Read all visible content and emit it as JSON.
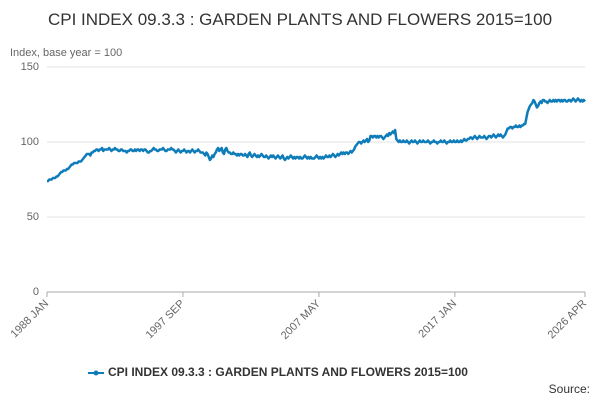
{
  "chart_data": {
    "type": "line",
    "title": "CPI INDEX 09.3.3 : GARDEN PLANTS AND FLOWERS 2015=100",
    "y_label": "Index, base year = 100",
    "source": "Source:",
    "categories": [
      "1988 JAN",
      null,
      null,
      null,
      null,
      null,
      null,
      null,
      null,
      null,
      null,
      null,
      null,
      null,
      null,
      null,
      null,
      null,
      null,
      null,
      null,
      null,
      null,
      null,
      null,
      null,
      null,
      null,
      null,
      null,
      null,
      null,
      null,
      null,
      null,
      null,
      null,
      null,
      null,
      null,
      null,
      null,
      null,
      null,
      null,
      null,
      null,
      null,
      null,
      null,
      null,
      null,
      null,
      null,
      null,
      null,
      null,
      null,
      null,
      null,
      null,
      null,
      null,
      null,
      null,
      null,
      null,
      null,
      null,
      null,
      null,
      null,
      null,
      null,
      null,
      null,
      null,
      null,
      null,
      null,
      null,
      null,
      null,
      null,
      null,
      null,
      null,
      null,
      null,
      null,
      null,
      null,
      null,
      null,
      null,
      null,
      null,
      null,
      null,
      null,
      null,
      null,
      null,
      null,
      null,
      null,
      null,
      null,
      null,
      null,
      null,
      null,
      null,
      null,
      null,
      null,
      "1997 SEP",
      null,
      null,
      null,
      null,
      null,
      null,
      null,
      null,
      null,
      null,
      null,
      null,
      null,
      null,
      null,
      null,
      null,
      null,
      null,
      null,
      null,
      null,
      null,
      null,
      null,
      null,
      null,
      null,
      null,
      null,
      null,
      null,
      null,
      null,
      null,
      null,
      null,
      null,
      null,
      null,
      null,
      null,
      null,
      null,
      null,
      null,
      null,
      null,
      null,
      null,
      null,
      null,
      null,
      null,
      null,
      null,
      null,
      null,
      null,
      null,
      null,
      null,
      null,
      null,
      null,
      null,
      null,
      null,
      null,
      null,
      null,
      null,
      null,
      null,
      null,
      null,
      null,
      null,
      null,
      null,
      null,
      null,
      null,
      null,
      null,
      null,
      null,
      null,
      null,
      null,
      null,
      null,
      null,
      null,
      null,
      null,
      null,
      null,
      null,
      null,
      null,
      null,
      null,
      null,
      null,
      null,
      null,
      null,
      null,
      null,
      null,
      null,
      null,
      null,
      null,
      "2007 MAY",
      null,
      null,
      null,
      null,
      null,
      null,
      null,
      null,
      null,
      null,
      null,
      null,
      null,
      null,
      null,
      null,
      null,
      null,
      null,
      null,
      null,
      null,
      null,
      null,
      null,
      null,
      null,
      null,
      null,
      null,
      null,
      null,
      null,
      null,
      null,
      null,
      null,
      null,
      null,
      null,
      null,
      null,
      null,
      null,
      null,
      null,
      null,
      null,
      null,
      null,
      null,
      null,
      null,
      null,
      null,
      null,
      null,
      null,
      null,
      null,
      null,
      null,
      null,
      null,
      null,
      null,
      null,
      null,
      null,
      null,
      null,
      null,
      null,
      null,
      null,
      null,
      null,
      null,
      null,
      null,
      null,
      null,
      null,
      null,
      null,
      null,
      null,
      null,
      null,
      null,
      null,
      null,
      null,
      null,
      null,
      null,
      null,
      null,
      null,
      null,
      null,
      null,
      null,
      null,
      null,
      null,
      null,
      null,
      null,
      null,
      null,
      null,
      null,
      null,
      null,
      "2017 JAN",
      null,
      null,
      null,
      null,
      null,
      null,
      null,
      null,
      null,
      null,
      null,
      null,
      null,
      null,
      null,
      null,
      null,
      null,
      null,
      null,
      null,
      null,
      null,
      null,
      null,
      null,
      null,
      null,
      null,
      null,
      null,
      null,
      null,
      null,
      null,
      null,
      null,
      null,
      null,
      null,
      null,
      null,
      null,
      null,
      null,
      null,
      null,
      null,
      null,
      null,
      null,
      null,
      null,
      null,
      null,
      null,
      null,
      null,
      null,
      null,
      null,
      null,
      null,
      null,
      null,
      null,
      null,
      null,
      null,
      null,
      null,
      null,
      null,
      null,
      null,
      null,
      null,
      null,
      null,
      null,
      null,
      null,
      null,
      null,
      null,
      null,
      null,
      null,
      null,
      null,
      null,
      null,
      null,
      null,
      null,
      null,
      null,
      null,
      null,
      null,
      null,
      null,
      null,
      null,
      null,
      null,
      null,
      null,
      null,
      null,
      "2026 APR"
    ],
    "series": [
      {
        "name": "CPI INDEX 09.3.3 : GARDEN PLANTS AND FLOWERS 2015=100",
        "color": "#0f7cba",
        "values": [
          74,
          74,
          75,
          75,
          75,
          76,
          76,
          76,
          77,
          77,
          78,
          79,
          80,
          80,
          81,
          81,
          81,
          82,
          82,
          83,
          84,
          85,
          85,
          86,
          86,
          86,
          86,
          87,
          87,
          87,
          88,
          89,
          90,
          91,
          92,
          92,
          92,
          91,
          93,
          93,
          94,
          94,
          95,
          95,
          94,
          95,
          95,
          96,
          94,
          95,
          95,
          95,
          95,
          96,
          95,
          94,
          95,
          95,
          96,
          95,
          95,
          94,
          94,
          95,
          95,
          94,
          94,
          94,
          93,
          94,
          94,
          95,
          95,
          94,
          94,
          95,
          94,
          95,
          95,
          94,
          95,
          95,
          94,
          95,
          95,
          94,
          93,
          93,
          94,
          94,
          95,
          96,
          95,
          95,
          94,
          94,
          95,
          95,
          95,
          96,
          95,
          94,
          94,
          95,
          95,
          95,
          96,
          95,
          95,
          94,
          93,
          94,
          95,
          94,
          93,
          94,
          94,
          95,
          94,
          93,
          94,
          94,
          93,
          94,
          95,
          94,
          93,
          94,
          94,
          95,
          94,
          93,
          93,
          93,
          92,
          91,
          93,
          92,
          90,
          88,
          89,
          91,
          90,
          92,
          93,
          95,
          96,
          94,
          95,
          96,
          93,
          92,
          95,
          96,
          94,
          93,
          93,
          92,
          92,
          93,
          92,
          92,
          91,
          92,
          91,
          92,
          92,
          91,
          91,
          92,
          91,
          90,
          92,
          93,
          91,
          90,
          91,
          92,
          91,
          90,
          91,
          90,
          91,
          92,
          91,
          90,
          90,
          91,
          90,
          89,
          90,
          91,
          90,
          91,
          90,
          89,
          90,
          91,
          90,
          89,
          90,
          91,
          89,
          88,
          89,
          90,
          89,
          90,
          91,
          90,
          89,
          90,
          89,
          90,
          90,
          89,
          90,
          89,
          89,
          90,
          91,
          90,
          89,
          90,
          89,
          90,
          89,
          89,
          89,
          90,
          91,
          90,
          89,
          90,
          89,
          90,
          89,
          90,
          91,
          90,
          90,
          91,
          90,
          91,
          92,
          91,
          90,
          91,
          92,
          91,
          92,
          93,
          92,
          93,
          92,
          93,
          93,
          92,
          93,
          94,
          93,
          94,
          95,
          97,
          98,
          99,
          100,
          100,
          99,
          100,
          101,
          100,
          101,
          102,
          100,
          101,
          104,
          104,
          103,
          104,
          104,
          103,
          104,
          103,
          104,
          104,
          103,
          102,
          103,
          104,
          105,
          104,
          106,
          105,
          106,
          107,
          106,
          108,
          102,
          101,
          100,
          101,
          100,
          100,
          101,
          100,
          100,
          101,
          100,
          99,
          100,
          101,
          100,
          100,
          101,
          100,
          99,
          100,
          101,
          100,
          100,
          101,
          100,
          100,
          100,
          101,
          100,
          99,
          100,
          100,
          101,
          100,
          100,
          99,
          100,
          100,
          101,
          100,
          100,
          101,
          100,
          99,
          100,
          100,
          101,
          100,
          100,
          101,
          100,
          100,
          101,
          100,
          100,
          101,
          100,
          101,
          102,
          101,
          101,
          102,
          102,
          103,
          103,
          102,
          103,
          104,
          103,
          102,
          103,
          104,
          103,
          103,
          103,
          104,
          103,
          102,
          103,
          104,
          104,
          103,
          104,
          105,
          104,
          103,
          104,
          105,
          104,
          105,
          104,
          103,
          104,
          105,
          107,
          109,
          109,
          110,
          110,
          109,
          110,
          110,
          111,
          110,
          110,
          111,
          110,
          111,
          111,
          112,
          112,
          116,
          120,
          122,
          124,
          125,
          126,
          128,
          127,
          125,
          123,
          124,
          126,
          127,
          126,
          128,
          128,
          127,
          127,
          126,
          127,
          128,
          127,
          127,
          128,
          127,
          128,
          127,
          128,
          128,
          127,
          128,
          127,
          128,
          128,
          127,
          127,
          128,
          128,
          127,
          128,
          129,
          128,
          127,
          128,
          129,
          128,
          127,
          128,
          127,
          128,
          127
        ]
      }
    ],
    "ylim": [
      0,
      150
    ],
    "yticks": [
      0,
      50,
      100,
      150
    ],
    "grid": true,
    "legend": "bottom"
  }
}
